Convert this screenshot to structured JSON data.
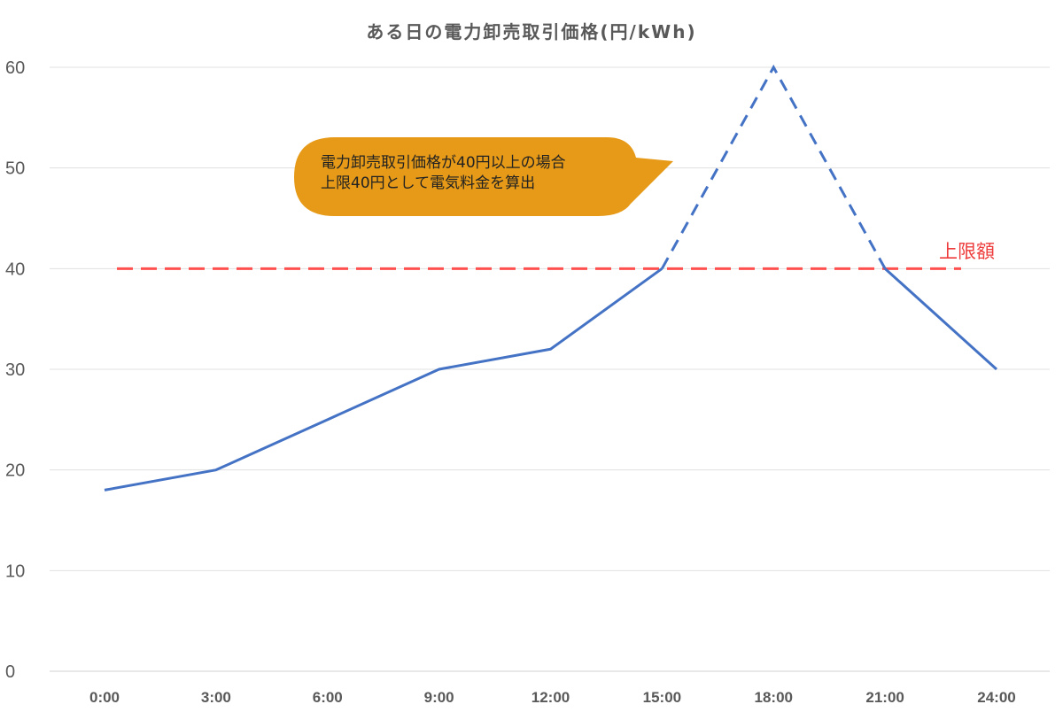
{
  "chart_data": {
    "type": "line",
    "title": "ある日の電力卸売取引価格(円/kWh)",
    "xlabel": "",
    "ylabel": "",
    "categories": [
      "0:00",
      "3:00",
      "6:00",
      "9:00",
      "12:00",
      "15:00",
      "18:00",
      "21:00",
      "24:00"
    ],
    "series": [
      {
        "name": "電力卸売取引価格",
        "values": [
          18,
          20,
          25,
          30,
          32,
          40,
          60,
          40,
          30
        ],
        "color": "#4472c4",
        "dashed_segment": [
          "15:00",
          "21:00"
        ]
      },
      {
        "name": "上限額",
        "values": [
          40,
          40,
          40,
          40,
          40,
          40,
          40,
          40,
          40
        ],
        "color": "#ff5050",
        "style": "dashed"
      }
    ],
    "ylim": [
      0,
      60
    ],
    "yticks": [
      0,
      10,
      20,
      30,
      40,
      50,
      60
    ],
    "grid": true,
    "legend": "none",
    "annotations": [
      {
        "text": "上限額",
        "color": "#ee3b3b",
        "near": "24:00, 40"
      },
      {
        "text": "電力卸売取引価格が40円以上の場合\n上限40円として電気料金を算出",
        "type": "callout",
        "color": "#e69a17"
      }
    ]
  },
  "title": "ある日の電力卸売取引価格(円/kWh)",
  "callout": {
    "text": "電力卸売取引価格が40円以上の場合\n上限40円として電気料金を算出"
  },
  "limit_label": "上限額",
  "yticks": [
    "0",
    "10",
    "20",
    "30",
    "40",
    "50",
    "60"
  ],
  "xticks": [
    "0:00",
    "3:00",
    "6:00",
    "9:00",
    "12:00",
    "15:00",
    "18:00",
    "21:00",
    "24:00"
  ]
}
